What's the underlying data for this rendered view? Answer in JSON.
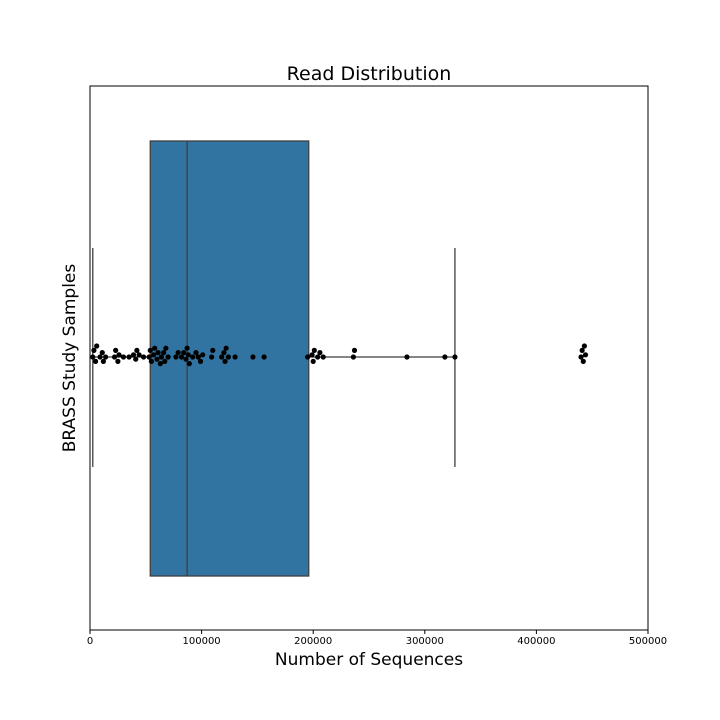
{
  "chart_data": {
    "type": "box",
    "title": "Read Distribution",
    "xlabel": "Number of Sequences",
    "ylabel": "BRASS Study Samples",
    "xlim": [
      0,
      500000
    ],
    "xticks": [
      0,
      100000,
      200000,
      300000,
      400000,
      500000
    ],
    "xtick_labels": [
      "0",
      "100000",
      "200000",
      "300000",
      "400000",
      "500000"
    ],
    "grid": false,
    "orientation": "horizontal",
    "box": {
      "whisker_low": 2500,
      "q1": 54000,
      "median": 87000,
      "q3": 196000,
      "whisker_high": 327000,
      "color": "#3274a1",
      "edge_color": "#3f3f3f"
    },
    "points": [
      2500,
      3500,
      5000,
      6000,
      9000,
      11000,
      12000,
      14000,
      22000,
      23000,
      25000,
      26000,
      30000,
      35000,
      39000,
      41000,
      42000,
      44000,
      48000,
      53000,
      54000,
      55000,
      57000,
      58000,
      60000,
      61000,
      63000,
      64000,
      66000,
      67000,
      68000,
      70000,
      77000,
      79000,
      82000,
      84000,
      86000,
      87000,
      88000,
      89000,
      92000,
      95000,
      97000,
      99000,
      101000,
      109000,
      110000,
      118000,
      120000,
      121000,
      122000,
      124000,
      130000,
      146000,
      156000,
      195000,
      199000,
      200000,
      201000,
      204000,
      206000,
      209000,
      236000,
      237000,
      284000,
      318000,
      327000,
      440000,
      441000,
      442000,
      443000,
      444000
    ],
    "point_color": "#000000"
  }
}
